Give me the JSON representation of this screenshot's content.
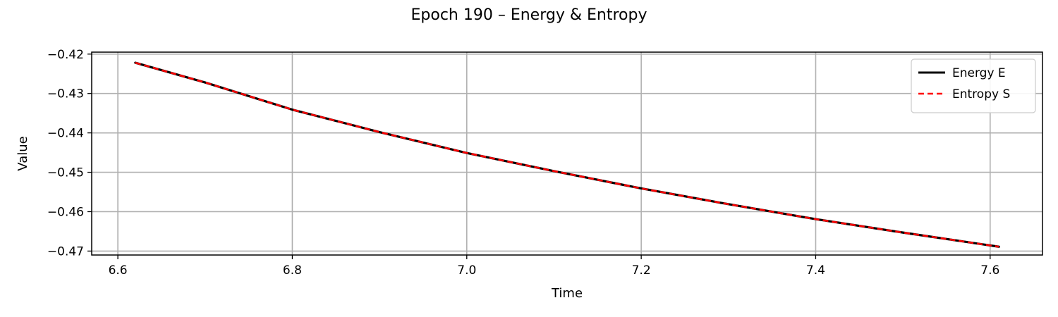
{
  "chart_data": {
    "type": "line",
    "title": "Epoch 190 – Energy & Entropy",
    "xlabel": "Time",
    "ylabel": "Value",
    "xlim": [
      6.57,
      7.66
    ],
    "ylim": [
      -0.471,
      -0.4195
    ],
    "xticks": [
      6.6,
      6.8,
      7.0,
      7.2,
      7.4,
      7.6
    ],
    "xtick_labels": [
      "6.6",
      "6.8",
      "7.0",
      "7.2",
      "7.4",
      "7.6"
    ],
    "yticks": [
      -0.42,
      -0.43,
      -0.44,
      -0.45,
      -0.46,
      -0.47
    ],
    "ytick_labels": [
      "−0.42",
      "−0.43",
      "−0.44",
      "−0.45",
      "−0.46",
      "−0.47"
    ],
    "grid": true,
    "legend_position": "top-right",
    "series": [
      {
        "name": "Energy E",
        "color": "#000000",
        "style": "solid",
        "x": [
          6.62,
          6.7,
          6.8,
          6.9,
          7.0,
          7.1,
          7.2,
          7.3,
          7.4,
          7.5,
          7.61
        ],
        "y": [
          -0.4222,
          -0.4272,
          -0.4341,
          -0.4398,
          -0.4451,
          -0.4497,
          -0.4541,
          -0.4581,
          -0.4619,
          -0.4653,
          -0.4689
        ]
      },
      {
        "name": "Entropy S",
        "color": "#ff0000",
        "style": "dashed",
        "x": [
          6.62,
          6.7,
          6.8,
          6.9,
          7.0,
          7.1,
          7.2,
          7.3,
          7.4,
          7.5,
          7.61
        ],
        "y": [
          -0.4222,
          -0.4272,
          -0.4341,
          -0.4398,
          -0.4451,
          -0.4497,
          -0.4541,
          -0.4581,
          -0.4619,
          -0.4653,
          -0.4689
        ]
      }
    ]
  }
}
